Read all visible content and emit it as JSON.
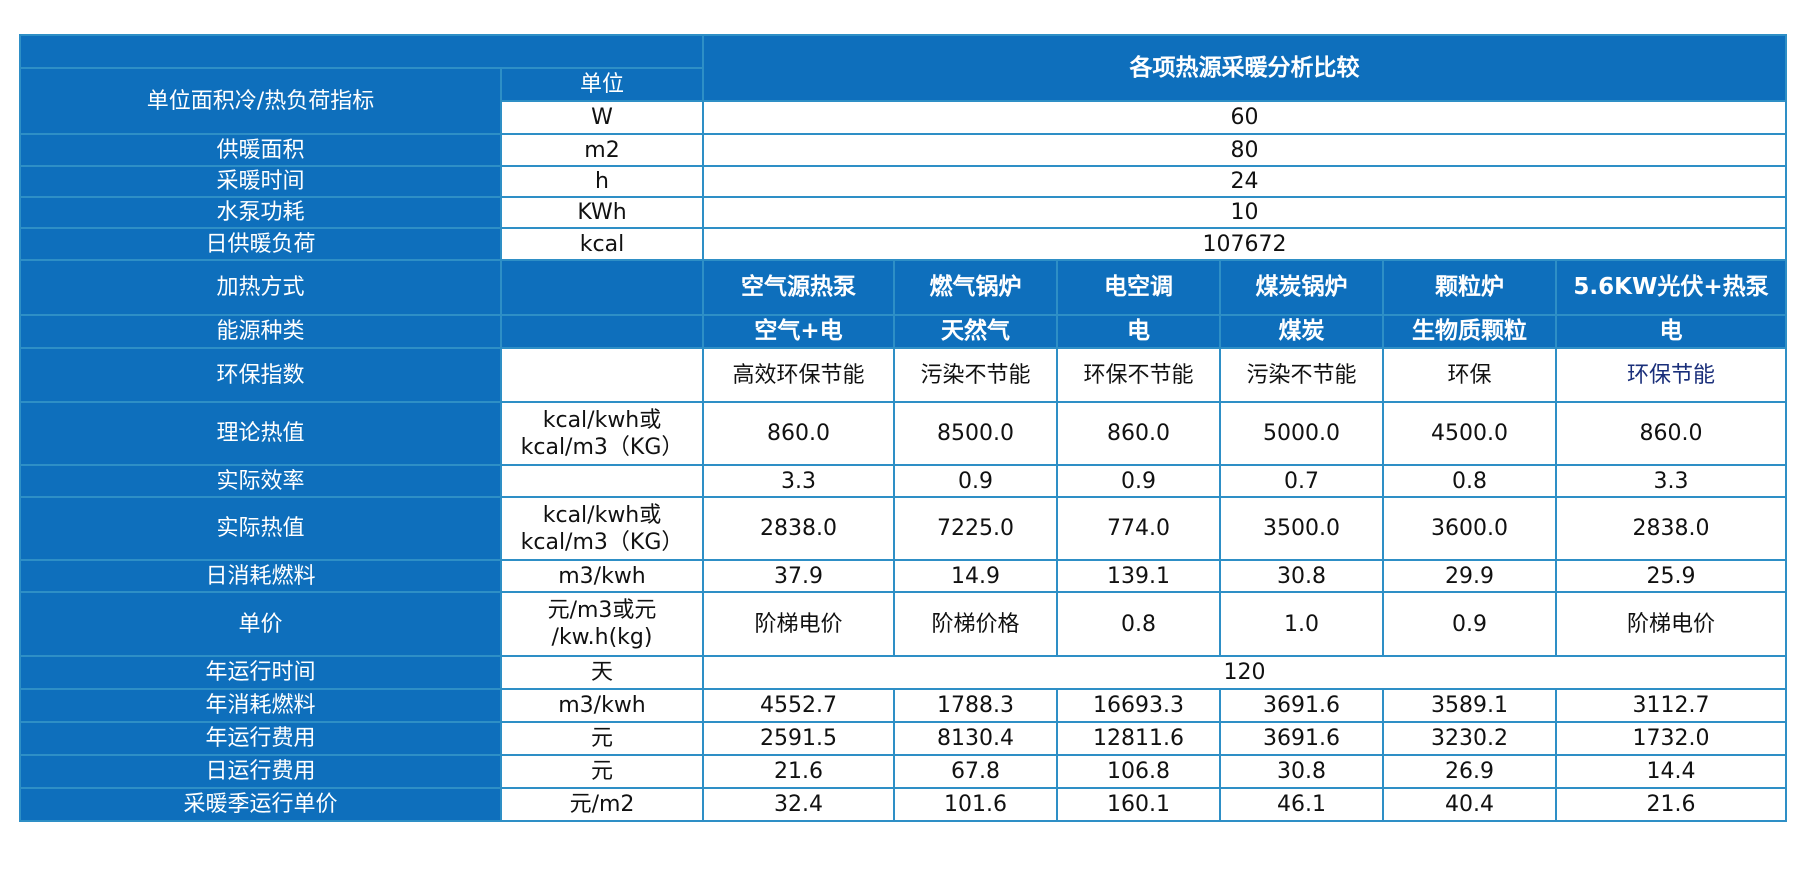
{
  "title": "各项热源采暖分析比较",
  "unit_header": "单位",
  "params": [
    {
      "label": "单位面积冷/热负荷指标",
      "unit": "W",
      "value": "60"
    },
    {
      "label": "供暖面积",
      "unit": "m2",
      "value": "80"
    },
    {
      "label": "采暖时间",
      "unit": "h",
      "value": "24"
    },
    {
      "label": "水泵功耗",
      "unit": "KWh",
      "value": "10"
    },
    {
      "label": "日供暖负荷",
      "unit": "kcal",
      "value": "107672"
    }
  ],
  "heating": {
    "label": "加热方式",
    "values": [
      "空气源热泵",
      "燃气锅炉",
      "电空调",
      "煤炭锅炉",
      "颗粒炉",
      "5.6KW光伏+热泵"
    ]
  },
  "energy": {
    "label": "能源种类",
    "values": [
      "空气+电",
      "天然气",
      "电",
      "煤炭",
      "生物质颗粒",
      "电"
    ]
  },
  "rows": [
    {
      "label": "环保指数",
      "unit": "",
      "values": [
        "高效环保节能",
        "污染不节能",
        "环保不节能",
        "污染不节能",
        "环保",
        "环保节能"
      ]
    },
    {
      "label": "理论热值",
      "unit": [
        "kcal/kwh或",
        "kcal/m3（KG）"
      ],
      "values": [
        "860.0",
        "8500.0",
        "860.0",
        "5000.0",
        "4500.0",
        "860.0"
      ]
    },
    {
      "label": "实际效率",
      "unit": "",
      "values": [
        "3.3",
        "0.9",
        "0.9",
        "0.7",
        "0.8",
        "3.3"
      ]
    },
    {
      "label": "实际热值",
      "unit": [
        "kcal/kwh或",
        "kcal/m3（KG）"
      ],
      "values": [
        "2838.0",
        "7225.0",
        "774.0",
        "3500.0",
        "3600.0",
        "2838.0"
      ]
    },
    {
      "label": "日消耗燃料",
      "unit": "m3/kwh",
      "values": [
        "37.9",
        "14.9",
        "139.1",
        "30.8",
        "29.9",
        "25.9"
      ]
    },
    {
      "label": "单价",
      "unit": [
        "元/m3或元",
        "/kw.h(kg)"
      ],
      "values": [
        "阶梯电价",
        "阶梯价格",
        "0.8",
        "1.0",
        "0.9",
        "阶梯电价"
      ]
    }
  ],
  "annual_time": {
    "label": "年运行时间",
    "unit": "天",
    "value": "120"
  },
  "rows2": [
    {
      "label": "年消耗燃料",
      "unit": "m3/kwh",
      "values": [
        "4552.7",
        "1788.3",
        "16693.3",
        "3691.6",
        "3589.1",
        "3112.7"
      ]
    },
    {
      "label": "年运行费用",
      "unit": "元",
      "values": [
        "2591.5",
        "8130.4",
        "12811.6",
        "3691.6",
        "3230.2",
        "1732.0"
      ]
    },
    {
      "label": "日运行费用",
      "unit": "元",
      "values": [
        "21.6",
        "67.8",
        "106.8",
        "30.8",
        "26.9",
        "14.4"
      ]
    },
    {
      "label": "采暖季运行单价",
      "unit": "元/m2",
      "values": [
        "32.4",
        "101.6",
        "160.1",
        "46.1",
        "40.4",
        "21.6"
      ]
    }
  ]
}
